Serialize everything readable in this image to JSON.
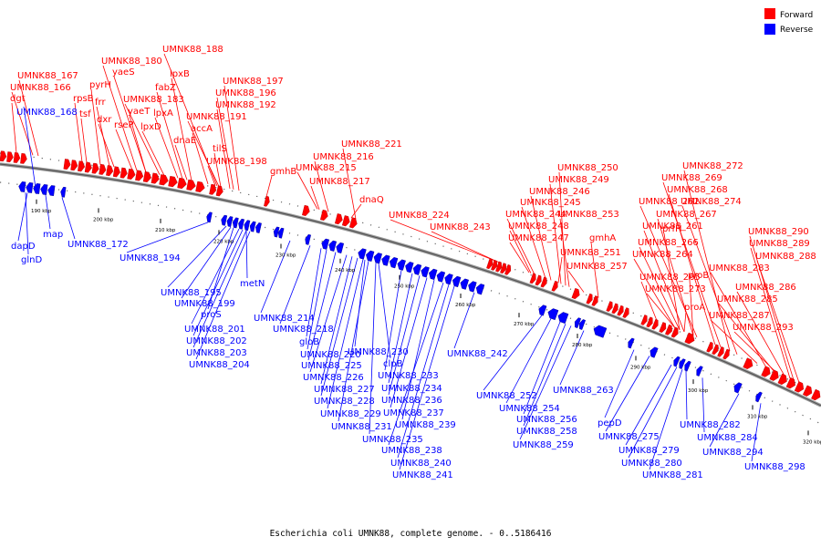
{
  "caption": "Escherichia coli UMNK88, complete genome. - 0..5186416",
  "legend": {
    "forward": {
      "label": "Forward",
      "color": "#ff0000"
    },
    "reverse": {
      "label": "Reverse",
      "color": "#0000ff"
    }
  },
  "ticks": [
    "190 kbp",
    "200 kbp",
    "210 kbp",
    "220 kbp",
    "230 kbp",
    "240 kbp",
    "250 kbp",
    "260 kbp",
    "270 kbp",
    "280 kbp",
    "290 kbp",
    "300 kbp",
    "310 kbp",
    "320 kbp"
  ],
  "forward_labels": [
    "UMNK88_188",
    "UMNK88_180",
    "yaeS",
    "lpxB",
    "UMNK88_167",
    "UMNK88_166",
    "pyrH",
    "fabZ",
    "UMNK88_197",
    "dgt",
    "rpsB",
    "frr",
    "UMNK88_183",
    "UMNK88_196",
    "tsf",
    "dxr",
    "yaeT",
    "lpxA",
    "UMNK88_192",
    "rseP",
    "lpxD",
    "UMNK88_191",
    "accA",
    "dnaE",
    "tilS",
    "UMNK88_221",
    "UMNK88_198",
    "UMNK88_216",
    "gmhB",
    "UMNK88_215",
    "UMNK88_217",
    "dnaQ",
    "UMNK88_224",
    "UMNK88_243",
    "UMNK88_250",
    "UMNK88_249",
    "UMNK88_246",
    "UMNK88_245",
    "UMNK88_244",
    "UMNK88_248",
    "UMNK88_247",
    "UMNK88_253",
    "UMNK88_251",
    "UMNK88_257",
    "UMNK88_272",
    "UMNK88_269",
    "UMNK88_268",
    "UMNK88_262",
    "UMNK88_274",
    "UMNK88_267",
    "UMNK88_261",
    "prfH",
    "gmhA",
    "UMNK88_266",
    "UMNK88_264",
    "UMNK88_265",
    "proB",
    "UMNK88_273",
    "proA",
    "UMNK88_290",
    "UMNK88_289",
    "UMNK88_288",
    "UMNK88_283",
    "UMNK88_286",
    "UMNK88_285",
    "UMNK88_287",
    "UMNK88_293"
  ],
  "reverse_labels": [
    "UMNK88_168",
    "dapD",
    "map",
    "glnD",
    "UMNK88_172",
    "UMNK88_194",
    "UMNK88_195",
    "metN",
    "UMNK88_199",
    "proS",
    "UMNK88_201",
    "UMNK88_202",
    "UMNK88_203",
    "UMNK88_204",
    "UMNK88_214",
    "UMNK88_218",
    "gloB",
    "UMNK88_220",
    "UMNK88_230",
    "UMNK88_225",
    "clpB",
    "UMNK88_226",
    "UMNK88_233",
    "UMNK88_227",
    "UMNK88_234",
    "UMNK88_228",
    "UMNK88_236",
    "UMNK88_229",
    "UMNK88_237",
    "UMNK88_231",
    "UMNK88_239",
    "UMNK88_235",
    "UMNK88_238",
    "UMNK88_240",
    "UMNK88_241",
    "UMNK88_242",
    "UMNK88_252",
    "UMNK88_254",
    "UMNK88_263",
    "UMNK88_256",
    "UMNK88_258",
    "UMNK88_259",
    "pepD",
    "UMNK88_275",
    "UMNK88_282",
    "UMNK88_284",
    "UMNK88_279",
    "UMNK88_280",
    "UMNK88_281",
    "UMNK88_294",
    "UMNK88_298"
  ]
}
